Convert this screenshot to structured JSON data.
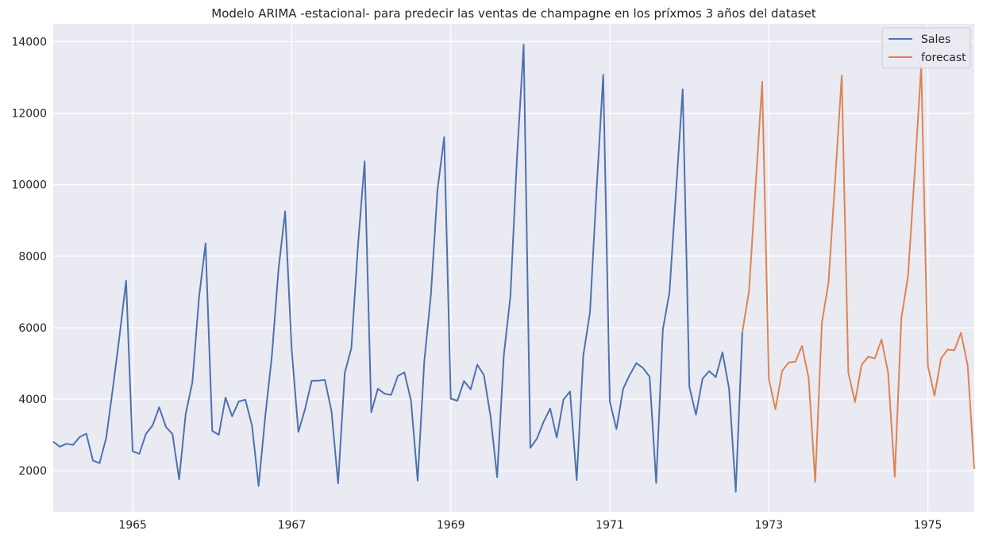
{
  "chart_data": {
    "type": "line",
    "title": "Modelo ARIMA -estacional- para predecir las ventas de champagne en los príxmos 3 años del dataset",
    "xlabel": "",
    "ylabel": "",
    "x_start": "1964-01",
    "xlim": [
      "1964-01",
      "1975-08"
    ],
    "ylim": [
      850,
      14500
    ],
    "x_ticks": [
      "1965",
      "1967",
      "1969",
      "1971",
      "1973",
      "1975"
    ],
    "y_ticks": [
      2000,
      4000,
      6000,
      8000,
      10000,
      12000,
      14000
    ],
    "y_tick_labels": [
      "2000",
      "4000",
      "6000",
      "8000",
      "10000",
      "12000",
      "14000"
    ],
    "grid": true,
    "legend_position": "top-right",
    "series": [
      {
        "name": "Sales",
        "color": "#4c72b0",
        "start": "1964-01",
        "values": [
          2815,
          2672,
          2755,
          2721,
          2946,
          3036,
          2282,
          2212,
          2922,
          4301,
          5764,
          7312,
          2541,
          2475,
          3031,
          3266,
          3776,
          3230,
          3028,
          1759,
          3595,
          4474,
          6838,
          8357,
          3113,
          3006,
          4047,
          3523,
          3937,
          3986,
          3260,
          1573,
          3528,
          5211,
          7614,
          9254,
          5375,
          3088,
          3718,
          4514,
          4520,
          4539,
          3663,
          1643,
          4739,
          5428,
          8314,
          10651,
          3633,
          4292,
          4154,
          4121,
          4647,
          4753,
          3965,
          1723,
          5048,
          6922,
          9858,
          11331,
          4016,
          3957,
          4510,
          4276,
          4968,
          4677,
          3523,
          1821,
          5222,
          6872,
          10803,
          13916,
          2639,
          2899,
          3370,
          3740,
          2927,
          3986,
          4217,
          1738,
          5221,
          6424,
          9842,
          13076,
          3934,
          3162,
          4286,
          4676,
          5010,
          4874,
          4633,
          1659,
          5951,
          6981,
          9851,
          12670,
          4348,
          3564,
          4577,
          4788,
          4618,
          5312,
          4298,
          1413,
          5877
        ]
      },
      {
        "name": "forecast",
        "color": "#dd8452",
        "start": "1972-09",
        "values": [
          5877,
          7021,
          9950,
          12880,
          4560,
          3720,
          4790,
          5030,
          5050,
          5490,
          4600,
          1690,
          6140,
          7260,
          10100,
          13050,
          4740,
          3920,
          4960,
          5190,
          5140,
          5670,
          4740,
          1830,
          6270,
          7430,
          10300,
          13330,
          4930,
          4100,
          5150,
          5390,
          5370,
          5860,
          4940,
          2050
        ]
      }
    ]
  }
}
